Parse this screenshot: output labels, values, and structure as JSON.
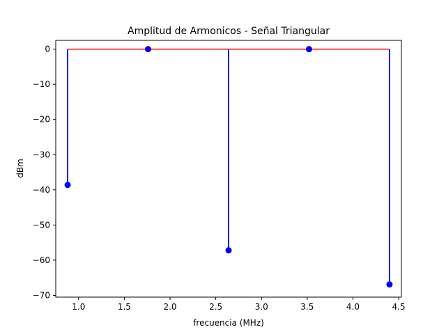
{
  "chart_data": {
    "type": "stem",
    "title": "Amplitud de Armonicos - Señal Triangular",
    "xlabel": "frecuencia (MHz)",
    "ylabel": "dBm",
    "xlim": [
      0.75,
      4.53
    ],
    "ylim": [
      -70.5,
      2.5
    ],
    "xticks": [
      1.0,
      1.5,
      2.0,
      2.5,
      3.0,
      3.5,
      4.0,
      4.5
    ],
    "xtick_labels": [
      "1.0",
      "1.5",
      "2.0",
      "2.5",
      "3.0",
      "3.5",
      "4.0",
      "4.5"
    ],
    "yticks": [
      0,
      -10,
      -20,
      -30,
      -40,
      -50,
      -60,
      -70
    ],
    "ytick_labels": [
      "0",
      "−10",
      "−20",
      "−30",
      "−40",
      "−50",
      "−60",
      "−70"
    ],
    "baseline": 0,
    "x": [
      0.88,
      1.76,
      2.64,
      3.52,
      4.4
    ],
    "values": [
      -38.6,
      0.0,
      -57.2,
      0.0,
      -66.9
    ],
    "colors": {
      "stem": "#0000ff",
      "marker": "#0000ff",
      "baseline": "#ff0000",
      "axes": "#000000"
    },
    "grid": false
  }
}
